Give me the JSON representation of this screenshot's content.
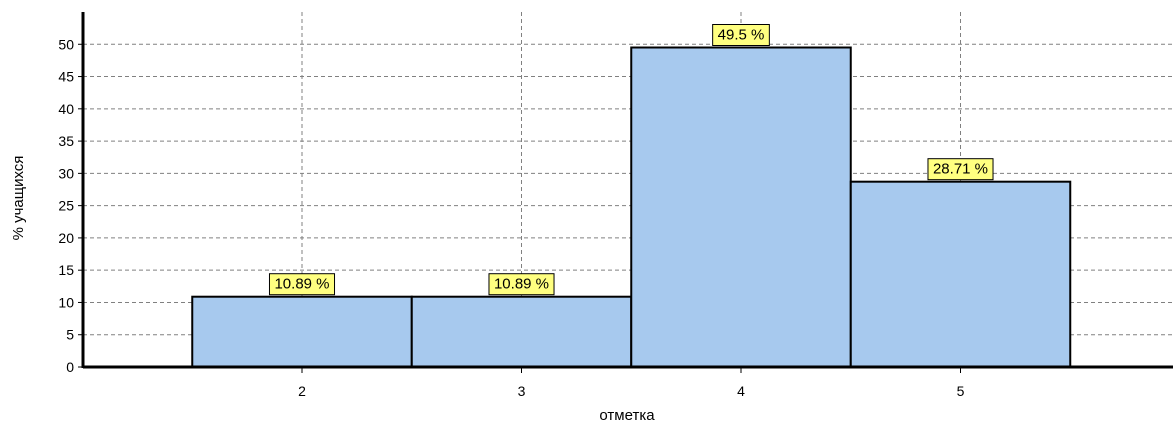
{
  "chart_data": {
    "type": "bar",
    "title": "",
    "xlabel": "отметка",
    "ylabel": "% учащихся",
    "categories": [
      "2",
      "3",
      "4",
      "5"
    ],
    "values": [
      10.89,
      10.89,
      49.5,
      28.71
    ],
    "value_labels": [
      "10.89 %",
      "10.89 %",
      "49.5 %",
      "28.71 %"
    ],
    "yticks": [
      "0",
      "5",
      "10",
      "15",
      "20",
      "25",
      "30",
      "35",
      "40",
      "45",
      "50"
    ],
    "ylim": [
      0,
      55
    ],
    "grid": true,
    "legend": "none",
    "colors": {
      "bar_fill": "#a7c9ee",
      "bar_stroke": "#000000",
      "label_fill": "#ffff80",
      "grid": "#808080"
    }
  }
}
